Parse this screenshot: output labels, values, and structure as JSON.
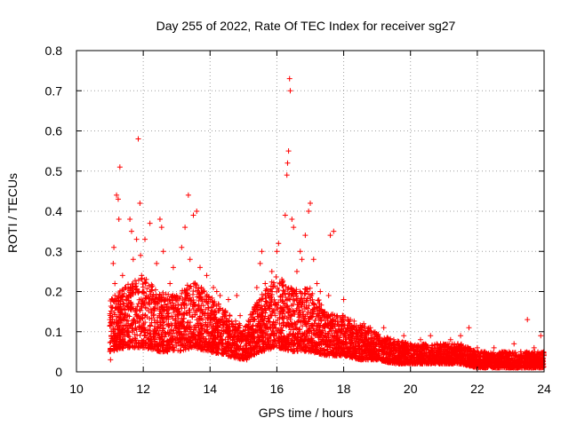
{
  "chart_data": {
    "type": "scatter",
    "title": "Day 255 of 2022, Rate Of TEC Index for receiver sg27",
    "xlabel": "GPS time / hours",
    "ylabel": "ROTI / TECUs",
    "xlim": [
      10,
      24
    ],
    "ylim": [
      0,
      0.8
    ],
    "xticks": [
      10,
      12,
      14,
      16,
      18,
      20,
      22,
      24
    ],
    "yticks": [
      0,
      0.1,
      0.2,
      0.3,
      0.4,
      0.5,
      0.6,
      0.7,
      0.8
    ],
    "xtick_labels": [
      "10",
      "12",
      "14",
      "16",
      "18",
      "20",
      "22",
      "24"
    ],
    "ytick_labels": [
      "0",
      "0.1",
      "0.2",
      "0.3",
      "0.4",
      "0.5",
      "0.6",
      "0.7",
      "0.8"
    ],
    "grid": true,
    "marker": "+",
    "color": "#ff0000",
    "series": [
      {
        "name": "ROTI",
        "points": [
          [
            11.02,
            0.03
          ],
          [
            11.05,
            0.12
          ],
          [
            11.08,
            0.18
          ],
          [
            11.1,
            0.27
          ],
          [
            11.12,
            0.31
          ],
          [
            11.15,
            0.22
          ],
          [
            11.18,
            0.08
          ],
          [
            11.2,
            0.44
          ],
          [
            11.25,
            0.43
          ],
          [
            11.27,
            0.38
          ],
          [
            11.3,
            0.51
          ],
          [
            11.33,
            0.15
          ],
          [
            11.38,
            0.24
          ],
          [
            11.45,
            0.21
          ],
          [
            11.55,
            0.12
          ],
          [
            11.6,
            0.38
          ],
          [
            11.65,
            0.35
          ],
          [
            11.7,
            0.28
          ],
          [
            11.8,
            0.33
          ],
          [
            11.85,
            0.58
          ],
          [
            11.9,
            0.42
          ],
          [
            11.92,
            0.29
          ],
          [
            11.95,
            0.24
          ],
          [
            12.05,
            0.33
          ],
          [
            12.1,
            0.19
          ],
          [
            12.2,
            0.37
          ],
          [
            12.3,
            0.14
          ],
          [
            12.4,
            0.27
          ],
          [
            12.5,
            0.38
          ],
          [
            12.55,
            0.36
          ],
          [
            12.6,
            0.3
          ],
          [
            12.7,
            0.16
          ],
          [
            12.8,
            0.22
          ],
          [
            12.9,
            0.26
          ],
          [
            13.0,
            0.19
          ],
          [
            13.05,
            0.12
          ],
          [
            13.15,
            0.31
          ],
          [
            13.25,
            0.36
          ],
          [
            13.35,
            0.44
          ],
          [
            13.4,
            0.28
          ],
          [
            13.5,
            0.39
          ],
          [
            13.6,
            0.4
          ],
          [
            13.7,
            0.26
          ],
          [
            13.8,
            0.2
          ],
          [
            13.9,
            0.24
          ],
          [
            14.0,
            0.18
          ],
          [
            14.1,
            0.21
          ],
          [
            14.2,
            0.2
          ],
          [
            14.3,
            0.19
          ],
          [
            14.45,
            0.15
          ],
          [
            14.55,
            0.18
          ],
          [
            14.65,
            0.12
          ],
          [
            14.8,
            0.19
          ],
          [
            14.9,
            0.14
          ],
          [
            15.0,
            0.08
          ],
          [
            15.1,
            0.03
          ],
          [
            15.2,
            0.05
          ],
          [
            15.3,
            0.13
          ],
          [
            15.4,
            0.21
          ],
          [
            15.5,
            0.27
          ],
          [
            15.55,
            0.3
          ],
          [
            15.65,
            0.22
          ],
          [
            15.75,
            0.19
          ],
          [
            15.85,
            0.25
          ],
          [
            16.0,
            0.3
          ],
          [
            16.05,
            0.32
          ],
          [
            16.15,
            0.23
          ],
          [
            16.25,
            0.39
          ],
          [
            16.3,
            0.49
          ],
          [
            16.32,
            0.52
          ],
          [
            16.35,
            0.55
          ],
          [
            16.38,
            0.73
          ],
          [
            16.4,
            0.7
          ],
          [
            16.45,
            0.38
          ],
          [
            16.5,
            0.36
          ],
          [
            16.6,
            0.25
          ],
          [
            16.7,
            0.3
          ],
          [
            16.75,
            0.28
          ],
          [
            16.85,
            0.34
          ],
          [
            16.95,
            0.4
          ],
          [
            17.0,
            0.42
          ],
          [
            17.1,
            0.28
          ],
          [
            17.2,
            0.22
          ],
          [
            17.3,
            0.2
          ],
          [
            17.45,
            0.12
          ],
          [
            17.55,
            0.19
          ],
          [
            17.6,
            0.34
          ],
          [
            17.7,
            0.35
          ],
          [
            17.8,
            0.14
          ],
          [
            17.9,
            0.1
          ],
          [
            18.0,
            0.18
          ],
          [
            18.2,
            0.13
          ],
          [
            18.4,
            0.1
          ],
          [
            18.6,
            0.12
          ],
          [
            18.8,
            0.11
          ],
          [
            19.0,
            0.09
          ],
          [
            19.2,
            0.11
          ],
          [
            19.5,
            0.08
          ],
          [
            19.8,
            0.09
          ],
          [
            20.0,
            0.07
          ],
          [
            20.3,
            0.08
          ],
          [
            20.6,
            0.09
          ],
          [
            20.9,
            0.07
          ],
          [
            21.2,
            0.08
          ],
          [
            21.5,
            0.09
          ],
          [
            21.75,
            0.11
          ],
          [
            22.0,
            0.06
          ],
          [
            22.2,
            0.05
          ],
          [
            22.5,
            0.06
          ],
          [
            22.8,
            0.05
          ],
          [
            23.1,
            0.07
          ],
          [
            23.3,
            0.05
          ],
          [
            23.5,
            0.13
          ],
          [
            23.7,
            0.06
          ],
          [
            23.9,
            0.09
          ],
          [
            23.98,
            0.02
          ]
        ],
        "density_profile": {
          "hours": [
            11.0,
            11.5,
            12.0,
            12.5,
            13.0,
            13.5,
            14.0,
            14.5,
            15.0,
            15.5,
            16.0,
            16.5,
            17.0,
            17.5,
            18.0,
            18.5,
            19.0,
            19.5,
            20.0,
            20.5,
            21.0,
            21.5,
            22.0,
            22.5,
            23.0,
            23.5,
            24.0
          ],
          "base": [
            0.05,
            0.06,
            0.06,
            0.05,
            0.05,
            0.06,
            0.05,
            0.04,
            0.03,
            0.05,
            0.06,
            0.05,
            0.05,
            0.04,
            0.04,
            0.03,
            0.03,
            0.02,
            0.02,
            0.02,
            0.02,
            0.02,
            0.01,
            0.01,
            0.01,
            0.01,
            0.01
          ],
          "spread": [
            0.13,
            0.16,
            0.18,
            0.15,
            0.14,
            0.17,
            0.14,
            0.11,
            0.08,
            0.14,
            0.18,
            0.16,
            0.16,
            0.11,
            0.1,
            0.09,
            0.07,
            0.06,
            0.05,
            0.05,
            0.05,
            0.05,
            0.04,
            0.04,
            0.04,
            0.04,
            0.04
          ],
          "points_per_hour": 380
        }
      }
    ]
  }
}
